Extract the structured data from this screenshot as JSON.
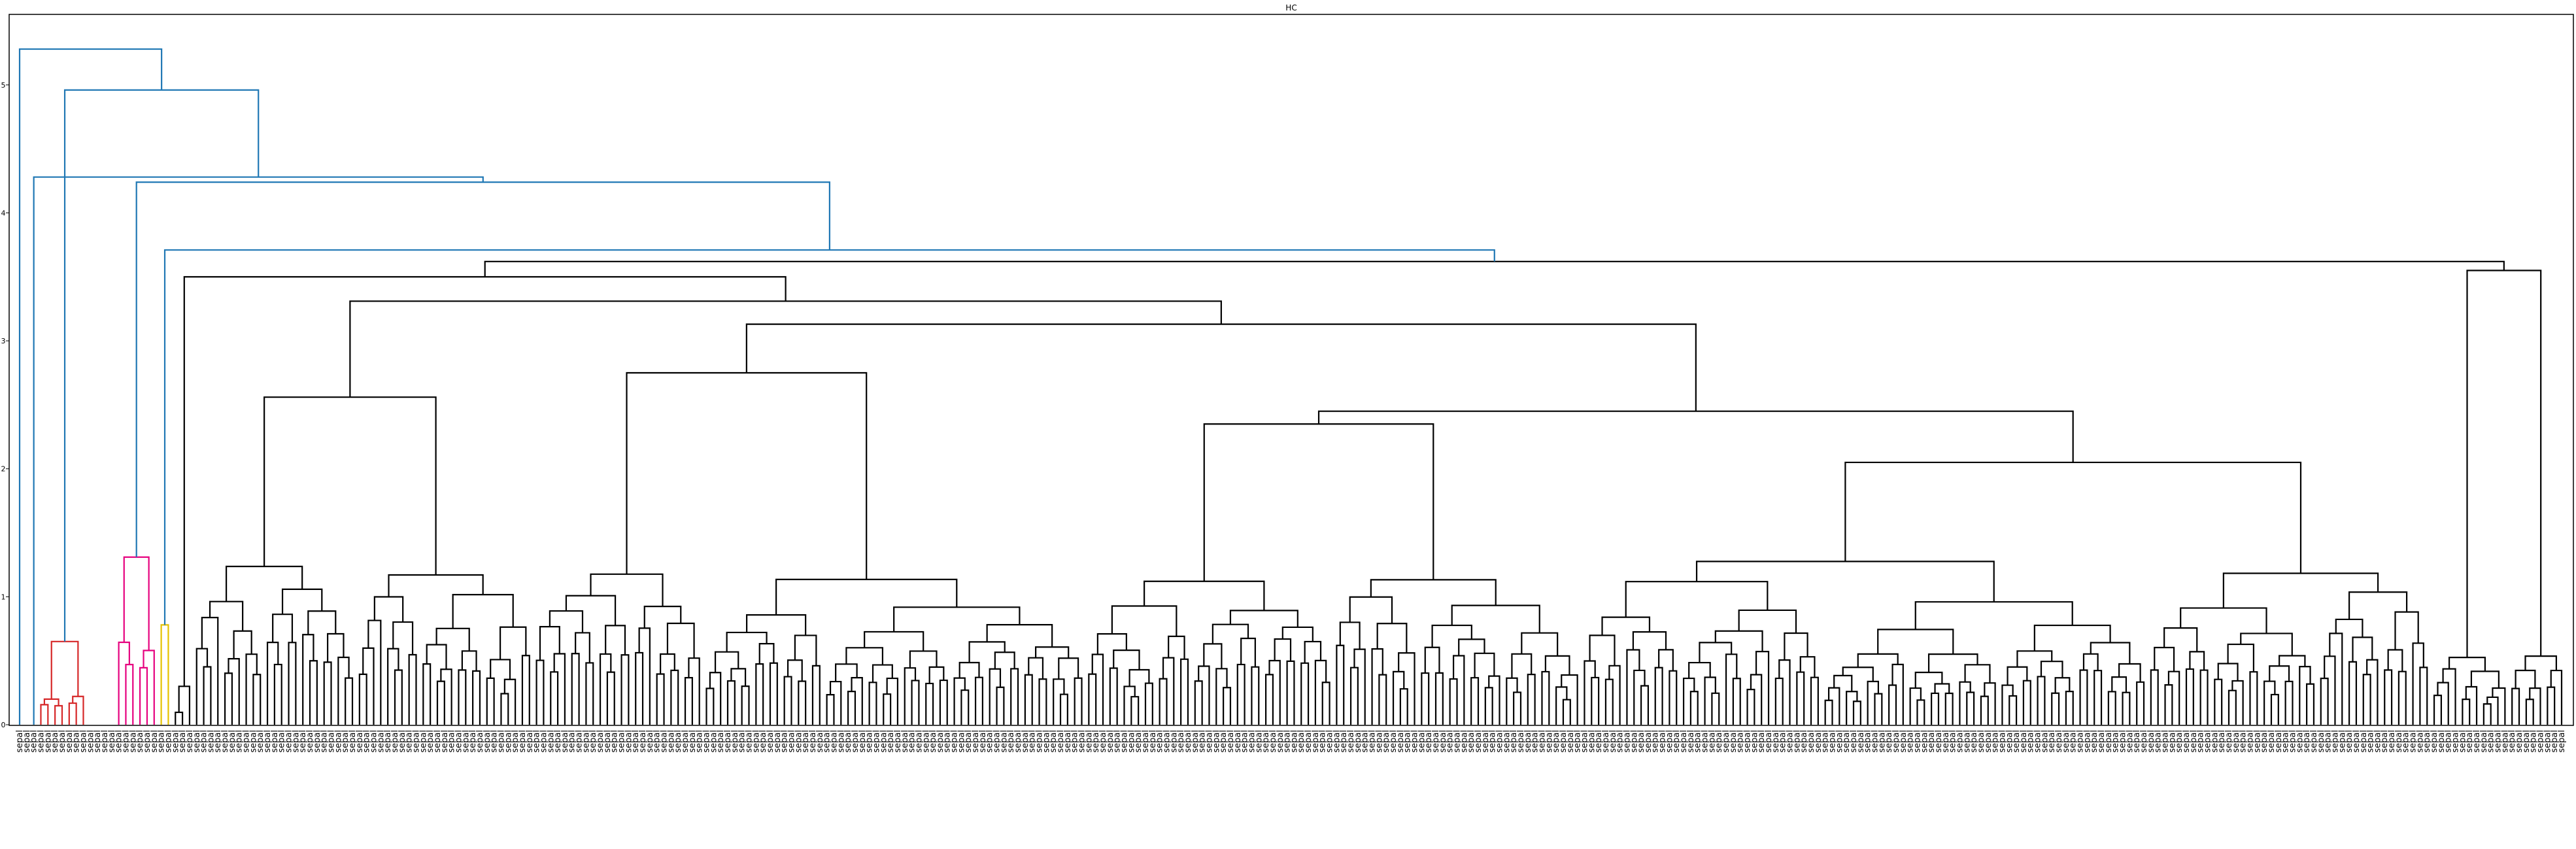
{
  "chart_data": {
    "type": "dendrogram",
    "title": "HC",
    "xlabel": "",
    "ylabel": "",
    "ylim": [
      0,
      5.5
    ],
    "yticks": [
      0,
      1,
      2,
      3,
      4,
      5
    ],
    "grid": false,
    "legend": "none",
    "leaf_count": 360,
    "leaf_label_sample": "sepal",
    "root": {
      "height": 5.28,
      "left_leaves": 0,
      "right_leaves": 359
    },
    "cluster_colors": {
      "above_threshold": "#1f77b4",
      "cluster_1": "#d62728",
      "cluster_2": "#e6007e",
      "cluster_3": "#e5c200",
      "cluster_main": "#000000"
    },
    "colored_subtrees": [
      {
        "color": "#d62728",
        "leaf_range": [
          3,
          9
        ],
        "heights": [
          0.65,
          0.23
        ]
      },
      {
        "color": "#e6007e",
        "leaf_range": [
          14,
          19
        ],
        "heights": [
          1.31,
          0.68,
          0.46
        ]
      },
      {
        "color": "#e5c200",
        "leaf_range": [
          20,
          21
        ],
        "heights": [
          0.78
        ]
      }
    ],
    "top_merges": [
      {
        "height": 5.28,
        "color": "#1f77b4"
      },
      {
        "height": 4.96,
        "color": "#1f77b4"
      },
      {
        "height": 4.28,
        "color": "#1f77b4"
      },
      {
        "height": 4.24,
        "color": "#1f77b4"
      },
      {
        "height": 3.71,
        "color": "#1f77b4"
      },
      {
        "height": 3.62,
        "color": "#000000"
      },
      {
        "height": 3.5,
        "color": "#000000"
      },
      {
        "height": 3.31,
        "color": "#000000"
      },
      {
        "height": 3.13,
        "color": "#000000"
      },
      {
        "height": 2.75,
        "color": "#000000"
      },
      {
        "height": 2.56,
        "color": "#000000"
      }
    ],
    "leaf_merge_height_range": [
      0.0,
      1.35
    ]
  },
  "colors": {
    "background": "#ffffff",
    "frame": "#000000",
    "text": "#000000"
  }
}
